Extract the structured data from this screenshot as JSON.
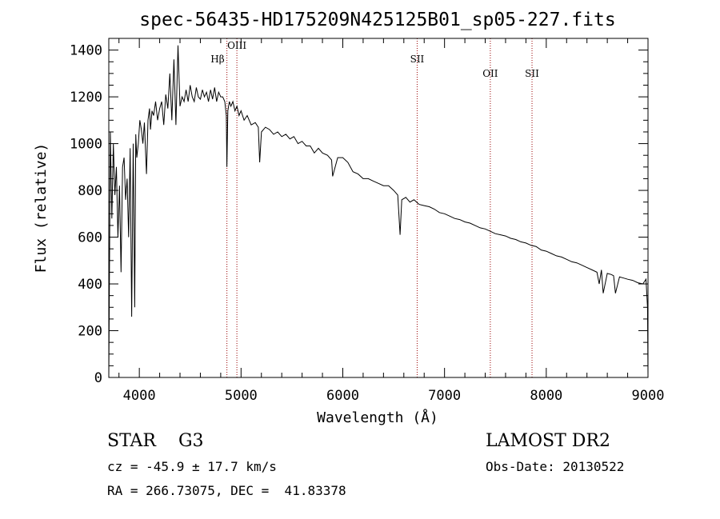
{
  "chart_data": {
    "type": "line",
    "title": "spec-56435-HD175209N425125B01_sp05-227.fits",
    "xlabel": "Wavelength (Å)",
    "ylabel": "Flux (relative)",
    "xlim": [
      3700,
      9000
    ],
    "ylim": [
      0,
      1450
    ],
    "xticks": [
      "4000",
      "5000",
      "6000",
      "7000",
      "8000",
      "9000"
    ],
    "yticks": [
      "0",
      "200",
      "400",
      "600",
      "800",
      "1000",
      "1200",
      "1400"
    ],
    "grid": false,
    "series": [
      {
        "x": [
          3700,
          3715,
          3730,
          3745,
          3760,
          3775,
          3790,
          3805,
          3820,
          3835,
          3850,
          3865,
          3880,
          3895,
          3910,
          3925,
          3940,
          3955,
          3965,
          3975,
          3990,
          4005,
          4020,
          4035,
          4050,
          4070,
          4085,
          4100,
          4110,
          4125,
          4140,
          4160,
          4180,
          4200,
          4220,
          4240,
          4260,
          4280,
          4300,
          4320,
          4340,
          4360,
          4380,
          4400,
          4420,
          4440,
          4460,
          4480,
          4500,
          4520,
          4540,
          4560,
          4580,
          4600,
          4620,
          4640,
          4660,
          4680,
          4700,
          4720,
          4740,
          4760,
          4780,
          4800,
          4820,
          4840,
          4855,
          4861,
          4870,
          4885,
          4900,
          4920,
          4940,
          4960,
          4980,
          5000,
          5030,
          5060,
          5100,
          5140,
          5170,
          5183,
          5200,
          5240,
          5280,
          5320,
          5360,
          5400,
          5440,
          5480,
          5520,
          5560,
          5600,
          5640,
          5680,
          5720,
          5760,
          5800,
          5850,
          5890,
          5900,
          5950,
          6000,
          6050,
          6100,
          6150,
          6200,
          6250,
          6300,
          6350,
          6400,
          6450,
          6500,
          6540,
          6563,
          6580,
          6620,
          6660,
          6700,
          6750,
          6800,
          6850,
          6900,
          6950,
          7000,
          7050,
          7100,
          7150,
          7200,
          7250,
          7300,
          7350,
          7400,
          7450,
          7500,
          7550,
          7600,
          7650,
          7700,
          7750,
          7800,
          7850,
          7900,
          7950,
          8000,
          8050,
          8100,
          8150,
          8200,
          8250,
          8300,
          8350,
          8400,
          8450,
          8498,
          8520,
          8542,
          8560,
          8600,
          8640,
          8662,
          8680,
          8720,
          8760,
          8800,
          8850,
          8900,
          8950,
          8980,
          8995,
          9000
        ],
        "y": [
          0,
          1050,
          680,
          1000,
          780,
          900,
          600,
          820,
          450,
          900,
          940,
          760,
          850,
          600,
          980,
          260,
          1000,
          300,
          1040,
          940,
          1000,
          1100,
          1060,
          1000,
          1090,
          870,
          1100,
          1150,
          1060,
          1140,
          1120,
          1180,
          1100,
          1150,
          1180,
          1080,
          1210,
          1150,
          1300,
          1100,
          1360,
          1080,
          1420,
          1160,
          1200,
          1180,
          1230,
          1180,
          1250,
          1200,
          1180,
          1240,
          1200,
          1190,
          1230,
          1200,
          1220,
          1180,
          1230,
          1190,
          1240,
          1180,
          1220,
          1200,
          1200,
          1180,
          1120,
          900,
          1140,
          1180,
          1160,
          1180,
          1140,
          1160,
          1120,
          1140,
          1100,
          1120,
          1080,
          1090,
          1070,
          920,
          1050,
          1070,
          1060,
          1040,
          1050,
          1030,
          1040,
          1020,
          1030,
          1000,
          1010,
          990,
          990,
          960,
          980,
          960,
          950,
          930,
          860,
          940,
          940,
          920,
          880,
          870,
          850,
          850,
          840,
          830,
          820,
          820,
          800,
          780,
          610,
          760,
          770,
          750,
          760,
          740,
          735,
          730,
          720,
          705,
          700,
          690,
          680,
          675,
          665,
          660,
          650,
          640,
          635,
          625,
          615,
          610,
          605,
          595,
          590,
          580,
          575,
          565,
          560,
          545,
          540,
          530,
          520,
          515,
          505,
          495,
          490,
          480,
          470,
          460,
          450,
          400,
          460,
          360,
          445,
          440,
          435,
          360,
          430,
          425,
          420,
          415,
          405,
          400,
          420,
          300,
          0
        ]
      }
    ],
    "lines": [
      {
        "label": "Hβ",
        "x": 4861
      },
      {
        "label": "OIII",
        "x": 4959
      },
      {
        "label": "SII",
        "x": 6731
      },
      {
        "label": "OII",
        "x": 7450
      },
      {
        "label": "SII",
        "x": 7860
      }
    ],
    "footer": {
      "class_label": "STAR    G3",
      "survey": "LAMOST DR2",
      "cz": "cz = -45.9 ± 17.7 km/s",
      "obs_date": "Obs-Date: 20130522",
      "radec": "RA = 266.73075, DEC =  41.83378"
    }
  }
}
